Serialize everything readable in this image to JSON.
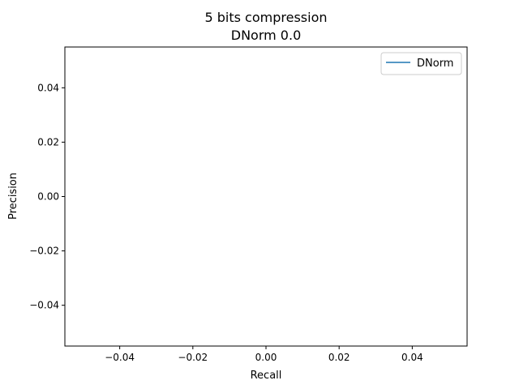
{
  "chart_data": {
    "type": "line",
    "title": "5 bits compression",
    "subtitle": "DNorm 0.0",
    "xlabel": "Recall",
    "ylabel": "Precision",
    "xlim": [
      -0.055,
      0.055
    ],
    "ylim": [
      -0.055,
      0.055
    ],
    "xticks": [
      -0.04,
      -0.02,
      0.0,
      0.02,
      0.04
    ],
    "xtick_labels": [
      "−0.04",
      "−0.02",
      "0.00",
      "0.02",
      "0.04"
    ],
    "yticks": [
      -0.04,
      -0.02,
      0.0,
      0.02,
      0.04
    ],
    "ytick_labels": [
      "−0.04",
      "−0.02",
      "0.00",
      "0.02",
      "0.04"
    ],
    "grid": false,
    "legend_position": "top-right",
    "series": [
      {
        "name": "DNorm",
        "color": "#1f77b4",
        "x": [],
        "y": []
      }
    ]
  }
}
